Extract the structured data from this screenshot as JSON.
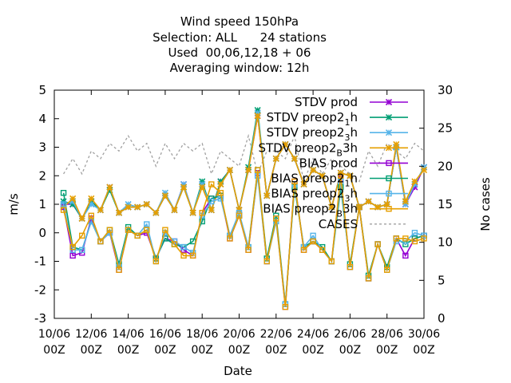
{
  "chart_data": {
    "type": "line",
    "title": [
      "Wind speed 150hPa",
      "Selection: ALL      24 stations",
      "Used  00,06,12,18 + 06",
      "Averaging window: 12h"
    ],
    "xlabel": "Date",
    "ylabel": "m/s",
    "y2label": "No cases",
    "ylim": [
      -3,
      5
    ],
    "y2lim": [
      0,
      30
    ],
    "yticks": [
      "5",
      "4",
      "3",
      "2",
      "1",
      "0",
      "-1",
      "-2",
      "-3"
    ],
    "y2ticks": [
      "30",
      "25",
      "20",
      "15",
      "10",
      "5",
      "0"
    ],
    "x_start": "10/06 00Z",
    "x_end": "30/06 00Z",
    "xticks": [
      {
        "date": "10/06",
        "time": "00Z"
      },
      {
        "date": "12/06",
        "time": "00Z"
      },
      {
        "date": "14/06",
        "time": "00Z"
      },
      {
        "date": "16/06",
        "time": "00Z"
      },
      {
        "date": "18/06",
        "time": "00Z"
      },
      {
        "date": "20/06",
        "time": "00Z"
      },
      {
        "date": "22/06",
        "time": "00Z"
      },
      {
        "date": "24/06",
        "time": "00Z"
      },
      {
        "date": "26/06",
        "time": "00Z"
      },
      {
        "date": "28/06",
        "time": "00Z"
      },
      {
        "date": "30/06",
        "time": "00Z"
      }
    ],
    "x": [
      "10/06 12Z",
      "11/06 00Z",
      "11/06 12Z",
      "12/06 00Z",
      "12/06 12Z",
      "13/06 00Z",
      "13/06 12Z",
      "14/06 00Z",
      "14/06 12Z",
      "15/06 00Z",
      "15/06 12Z",
      "16/06 00Z",
      "16/06 12Z",
      "17/06 00Z",
      "17/06 12Z",
      "18/06 00Z",
      "18/06 12Z",
      "19/06 00Z",
      "19/06 12Z",
      "20/06 00Z",
      "20/06 12Z",
      "21/06 00Z",
      "21/06 12Z",
      "22/06 00Z",
      "22/06 12Z",
      "23/06 00Z",
      "23/06 12Z",
      "24/06 00Z",
      "24/06 12Z",
      "25/06 00Z",
      "25/06 12Z",
      "26/06 00Z",
      "26/06 12Z",
      "27/06 00Z",
      "27/06 12Z",
      "28/06 00Z",
      "28/06 12Z",
      "29/06 00Z",
      "29/06 12Z",
      "30/06 00Z"
    ],
    "series": [
      {
        "name": "STDV prod",
        "color": "#9400d3",
        "marker": "x",
        "axis": "y1",
        "values": [
          1.0,
          1.0,
          0.5,
          1.1,
          0.8,
          1.6,
          0.7,
          0.9,
          0.9,
          1.0,
          0.7,
          1.3,
          0.8,
          1.7,
          0.7,
          1.7,
          0.8,
          1.8,
          2.2,
          0.8,
          2.2,
          4.1,
          1.3,
          2.6,
          3.1,
          2.6,
          1.7,
          2.2,
          2.0,
          0.9,
          2.1,
          2.0,
          0.9,
          1.1,
          0.9,
          1.0,
          3.0,
          1.0,
          1.6,
          2.3
        ]
      },
      {
        "name": "STDV preop2_1h",
        "color": "#009e73",
        "marker": "x",
        "axis": "y1",
        "values": [
          1.1,
          1.0,
          0.5,
          1.1,
          0.8,
          1.5,
          0.7,
          0.9,
          0.9,
          1.0,
          0.7,
          1.3,
          0.8,
          1.6,
          0.7,
          1.8,
          0.8,
          1.8,
          2.2,
          0.8,
          2.3,
          4.3,
          1.3,
          2.6,
          3.1,
          2.6,
          1.7,
          2.2,
          2.0,
          0.9,
          2.1,
          2.0,
          0.9,
          1.1,
          0.9,
          1.0,
          3.0,
          1.1,
          1.7,
          2.3
        ]
      },
      {
        "name": "STDV preop2_3h",
        "color": "#56b4e9",
        "marker": "x",
        "axis": "y1",
        "values": [
          1.0,
          1.1,
          0.5,
          1.0,
          0.8,
          1.6,
          0.7,
          1.0,
          0.9,
          1.0,
          0.7,
          1.4,
          0.8,
          1.7,
          0.7,
          1.7,
          0.8,
          1.7,
          2.2,
          0.8,
          2.2,
          4.2,
          1.3,
          2.6,
          3.1,
          2.6,
          1.7,
          2.2,
          2.0,
          0.9,
          2.1,
          2.0,
          0.9,
          1.1,
          0.9,
          1.0,
          3.0,
          1.0,
          1.7,
          2.3
        ]
      },
      {
        "name": "STDV preop2_B3h",
        "color": "#e69f00",
        "marker": "x",
        "axis": "y1",
        "values": [
          0.9,
          1.2,
          0.5,
          1.2,
          0.8,
          1.6,
          0.7,
          0.9,
          0.9,
          1.0,
          0.7,
          1.3,
          0.8,
          1.6,
          0.7,
          1.6,
          0.8,
          1.7,
          2.2,
          0.8,
          2.2,
          4.1,
          1.3,
          2.6,
          3.1,
          2.6,
          1.7,
          2.2,
          2.0,
          0.9,
          2.1,
          2.0,
          0.9,
          1.1,
          0.9,
          1.0,
          3.1,
          1.1,
          1.8,
          2.2
        ]
      },
      {
        "name": "BIAS prod",
        "color": "#9400d3",
        "marker": "square",
        "axis": "y1",
        "values": [
          0.9,
          -0.8,
          -0.7,
          0.5,
          -0.3,
          0.0,
          -1.3,
          0.1,
          -0.1,
          0.0,
          -0.9,
          -0.2,
          -0.3,
          -0.6,
          -0.8,
          0.7,
          1.2,
          1.3,
          -0.2,
          0.6,
          -0.6,
          2.1,
          -1.0,
          0.5,
          -2.6,
          1.8,
          -0.6,
          -0.3,
          -0.6,
          -1.0,
          1.9,
          -1.2,
          0.9,
          -1.6,
          -0.4,
          -1.3,
          -0.2,
          -0.8,
          -0.2,
          -0.1
        ]
      },
      {
        "name": "BIAS preop2_1h",
        "color": "#009e73",
        "marker": "square",
        "axis": "y1",
        "values": [
          1.4,
          -0.5,
          -0.6,
          0.4,
          -0.3,
          0.1,
          -1.1,
          0.2,
          -0.1,
          0.1,
          -0.9,
          -0.2,
          -0.4,
          -0.5,
          -0.3,
          0.4,
          1.2,
          1.3,
          -0.1,
          0.6,
          -0.5,
          2.2,
          -0.9,
          0.6,
          -2.5,
          1.6,
          -0.5,
          -0.3,
          -0.5,
          -1.0,
          1.6,
          -1.1,
          0.9,
          -1.5,
          -0.4,
          -1.2,
          -0.2,
          -0.4,
          -0.2,
          -0.1
        ]
      },
      {
        "name": "BIAS preop2_3h",
        "color": "#56b4e9",
        "marker": "square",
        "axis": "y1",
        "values": [
          1.0,
          -0.6,
          -0.6,
          0.4,
          -0.3,
          0.0,
          -1.2,
          0.1,
          -0.1,
          0.3,
          -1.0,
          0.0,
          -0.3,
          -0.5,
          -0.7,
          0.6,
          1.1,
          1.2,
          -0.1,
          0.7,
          -0.5,
          2.0,
          -1.0,
          0.4,
          -2.5,
          1.7,
          -0.5,
          -0.1,
          -0.6,
          -1.0,
          1.8,
          -1.2,
          0.9,
          -1.6,
          -0.4,
          -1.3,
          -0.3,
          -0.3,
          0.0,
          -0.1
        ]
      },
      {
        "name": "BIAS preop2_B3h",
        "color": "#e69f00",
        "marker": "square",
        "axis": "y1",
        "values": [
          0.8,
          -0.5,
          -0.1,
          0.6,
          -0.3,
          0.1,
          -1.3,
          0.1,
          -0.1,
          0.1,
          -1.0,
          0.1,
          -0.4,
          -0.8,
          -0.8,
          0.7,
          1.7,
          1.4,
          -0.2,
          0.6,
          -0.6,
          2.2,
          -1.0,
          0.5,
          -2.6,
          1.8,
          -0.6,
          -0.3,
          -0.6,
          -1.0,
          2.0,
          -1.2,
          0.9,
          -1.6,
          -0.4,
          -1.3,
          -0.2,
          -0.2,
          -0.3,
          -0.2
        ]
      },
      {
        "name": "CASES",
        "color": "#a0a0a0",
        "marker": "none",
        "dash": true,
        "axis": "y2",
        "values": [
          19,
          21,
          19,
          22,
          21,
          23,
          22,
          24,
          22,
          23,
          20,
          23,
          21,
          23,
          22,
          23,
          19,
          22,
          21,
          20,
          24,
          19,
          22,
          22,
          21,
          24,
          18,
          21,
          19,
          21,
          20,
          19,
          18,
          22,
          20,
          23,
          22,
          21,
          23,
          22
        ]
      }
    ],
    "legend": {
      "placement": "top-right",
      "entries": [
        {
          "label": "STDV prod",
          "series": 0
        },
        {
          "label": "STDV preop2",
          "sub": "1",
          "suffix": "h",
          "series": 1
        },
        {
          "label": "STDV preop2",
          "sub": "3",
          "suffix": "h",
          "series": 2
        },
        {
          "label": "STDV preop2",
          "sub": "B",
          "suffix": "3h",
          "series": 3
        },
        {
          "label": "BIAS prod",
          "series": 4
        },
        {
          "label": "BIAS preop2",
          "sub": "1",
          "suffix": "h",
          "series": 5
        },
        {
          "label": "BIAS preop2",
          "sub": "3",
          "suffix": "h",
          "series": 6
        },
        {
          "label": "BIAS preop2",
          "sub": "B",
          "suffix": "3h",
          "series": 7
        },
        {
          "label": "CASES",
          "series": 8
        }
      ]
    },
    "grid": false
  }
}
